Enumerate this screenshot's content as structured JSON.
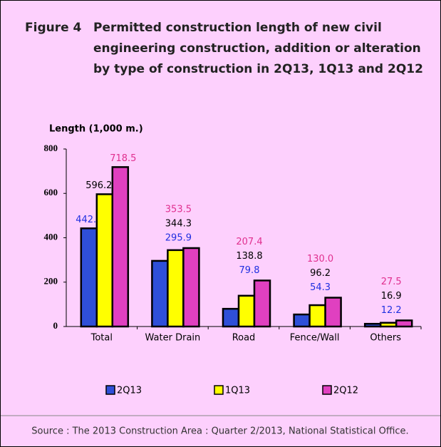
{
  "chart_data": {
    "type": "bar",
    "figure_label": "Figure 4",
    "title": "Permitted construction length of new civil engineering construction, addition or alteration by type of construction in 2Q13, 1Q13 and 2Q12",
    "y_axis_label": "Length (1,000 m.)",
    "categories": [
      "Total",
      "Water Drain",
      "Road",
      "Fence/Wall",
      "Others"
    ],
    "series": [
      {
        "name": "2Q13",
        "color": "#2f4fd8",
        "label_color": "#1f2fe0",
        "values": [
          442.4,
          295.9,
          79.8,
          54.3,
          12.2
        ]
      },
      {
        "name": "1Q13",
        "color": "#ffff00",
        "label_color": "#000000",
        "values": [
          596.2,
          344.3,
          138.8,
          96.2,
          16.9
        ]
      },
      {
        "name": "2Q12",
        "color": "#e040c0",
        "label_color": "#e0308f",
        "values": [
          718.5,
          353.5,
          207.4,
          130.0,
          27.5
        ],
        "value_labels": [
          "718.5",
          "353.5",
          "207.4",
          "130.0",
          "27.5"
        ]
      }
    ],
    "ylim": [
      0,
      800
    ],
    "yticks": [
      0,
      200,
      400,
      600,
      800
    ],
    "source": "Source : The 2013 Construction Area : Quarter 2/2013, National Statistical Office."
  }
}
